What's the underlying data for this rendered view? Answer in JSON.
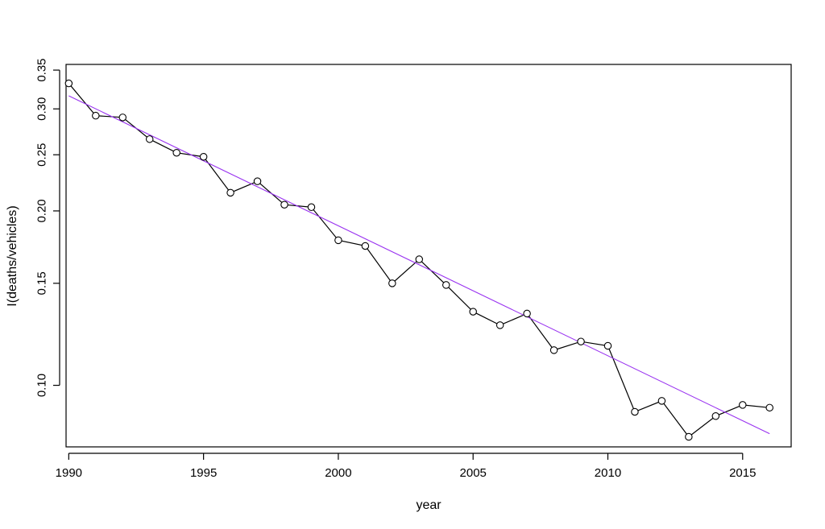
{
  "chart_data": {
    "type": "line",
    "title": "",
    "xlabel": "year",
    "ylabel": "I(deaths/vehicles)",
    "xlim": [
      1989.9,
      2016.8
    ],
    "ylim": [
      0.0783,
      0.358
    ],
    "y_scale": "log",
    "grid": false,
    "legend": "none",
    "x_ticks": [
      1990,
      1995,
      2000,
      2005,
      2010,
      2015
    ],
    "x_tick_labels": [
      "1990",
      "1995",
      "2000",
      "2005",
      "2010",
      "2015"
    ],
    "y_ticks": [
      0.1,
      0.15,
      0.2,
      0.25,
      0.3,
      0.35
    ],
    "y_tick_labels": [
      "0.10",
      "0.15",
      "0.20",
      "0.25",
      "0.30",
      "0.35"
    ],
    "series": [
      {
        "style": "points-and-lines",
        "color": "#000000",
        "x": [
          1990,
          1991,
          1992,
          1993,
          1994,
          1995,
          1996,
          1997,
          1998,
          1999,
          2000,
          2001,
          2002,
          2003,
          2004,
          2005,
          2006,
          2007,
          2008,
          2009,
          2010,
          2011,
          2012,
          2013,
          2014,
          2015,
          2016
        ],
        "y": [
          0.332,
          0.292,
          0.29,
          0.266,
          0.252,
          0.248,
          0.215,
          0.225,
          0.205,
          0.203,
          0.178,
          0.174,
          0.15,
          0.165,
          0.149,
          0.134,
          0.127,
          0.133,
          0.115,
          0.119,
          0.117,
          0.09,
          0.094,
          0.0815,
          0.0885,
          0.0925,
          0.0915
        ]
      },
      {
        "style": "line",
        "color": "#9932f0",
        "x": [
          1990,
          2016
        ],
        "y": [
          0.316,
          0.0825
        ]
      }
    ]
  }
}
